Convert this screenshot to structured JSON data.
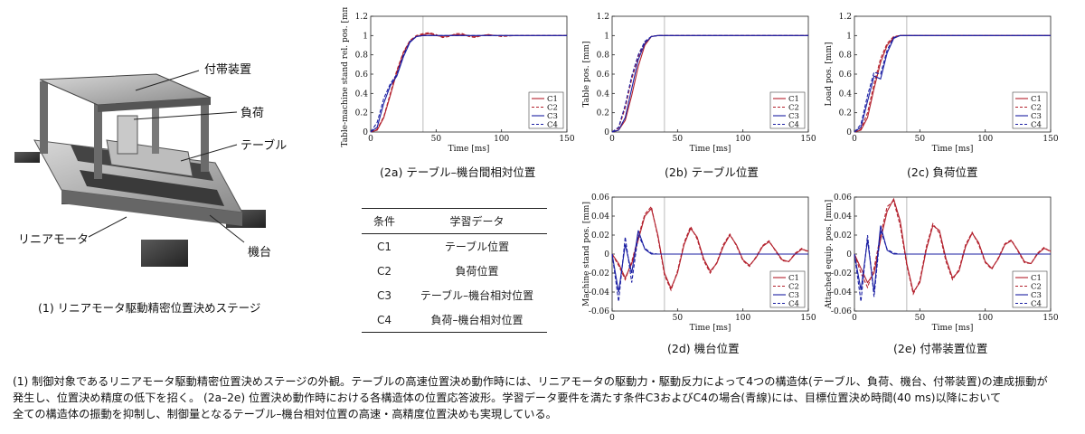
{
  "photo": {
    "labels": {
      "attached": "付帯装置",
      "load": "負荷",
      "table": "テーブル",
      "motor": "リニアモータ",
      "base": "機台"
    },
    "caption": "(1) リニアモータ駆動精密位置決めステージ"
  },
  "captions": {
    "a": "(2a) テーブル–機台間相対位置",
    "b": "(2b) テーブル位置",
    "c": "(2c) 負荷位置",
    "d": "(2d) 機台位置",
    "e": "(2e) 付帯装置位置"
  },
  "legend": [
    "C1",
    "C2",
    "C3",
    "C4"
  ],
  "colors": {
    "c1c2": "#b3202c",
    "c3c4": "#1b1fa3",
    "grid_marker": "#bbbbbb"
  },
  "table": {
    "headers": [
      "条件",
      "学習データ"
    ],
    "rows": [
      [
        "C1",
        "テーブル位置"
      ],
      [
        "C2",
        "負荷位置"
      ],
      [
        "C3",
        "テーブル–機台相対位置"
      ],
      [
        "C4",
        "負荷–機台相対位置"
      ]
    ]
  },
  "bottom_caption": {
    "line1": "(1) 制御対象であるリニアモータ駆動精密位置決めステージの外観。テーブルの高速位置決め動作時には、リニアモータの駆動力・駆動反力によって4つの構造体(テーブル、負荷、機台、付帯装置)の連成振動が",
    "line2": "発生し、位置決め精度の低下を招く。 (2a–2e) 位置決め動作時における各構造体の位置応答波形。学習データ要件を満たす条件C3およびC4の場合(青線)には、目標位置決め時間(40 ms)以降において",
    "line3": "全ての構造体の振動を抑制し、制御量となるテーブル–機台相対位置の高速・高精度位置決めも実現している。"
  },
  "chart_data": [
    {
      "type": "line",
      "id": "a",
      "xlabel": "Time [ms]",
      "ylabel": "Table-machine stand rel. pos. [mm]",
      "xlim": [
        0,
        150
      ],
      "ylim": [
        0,
        1.2
      ],
      "xticks": [
        0,
        50,
        100,
        150
      ],
      "yticks": [
        0,
        0.2,
        0.4,
        0.6,
        0.8,
        1,
        1.2
      ],
      "vline": 40,
      "x": [
        0,
        5,
        10,
        15,
        20,
        25,
        30,
        35,
        40,
        45,
        50,
        55,
        60,
        65,
        70,
        75,
        80,
        85,
        90,
        95,
        100,
        110,
        120,
        130,
        140,
        150
      ],
      "series": [
        {
          "name": "C1",
          "values": [
            0,
            0.02,
            0.15,
            0.38,
            0.62,
            0.82,
            0.94,
            0.99,
            1.01,
            1.02,
            1.0,
            0.99,
            1.0,
            1.01,
            1.01,
            1.0,
            0.99,
            1.0,
            1.01,
            1.0,
            1.0,
            1.0,
            1.0,
            1.0,
            1.0,
            1.0
          ]
        },
        {
          "name": "C2",
          "values": [
            0,
            0.03,
            0.16,
            0.4,
            0.64,
            0.83,
            0.95,
            1.0,
            1.02,
            1.03,
            1.01,
            0.98,
            0.99,
            1.02,
            1.02,
            0.99,
            0.98,
            1.0,
            1.01,
            1.0,
            0.99,
            1.0,
            1.0,
            1.0,
            1.0,
            1.0
          ]
        },
        {
          "name": "C3",
          "values": [
            0,
            0.05,
            0.3,
            0.48,
            0.58,
            0.78,
            0.93,
            0.99,
            1.0,
            1.0,
            1.0,
            1.0,
            1.0,
            1.0,
            1.0,
            1.0,
            1.0,
            1.0,
            1.0,
            1.0,
            1.0,
            1.0,
            1.0,
            1.0,
            1.0,
            1.0
          ]
        },
        {
          "name": "C4",
          "values": [
            0,
            0.1,
            0.35,
            0.5,
            0.6,
            0.8,
            0.94,
            0.99,
            1.0,
            1.0,
            1.0,
            1.0,
            1.0,
            1.0,
            1.0,
            1.0,
            1.0,
            1.0,
            1.0,
            1.0,
            1.0,
            1.0,
            1.0,
            1.0,
            1.0,
            1.0
          ]
        }
      ]
    },
    {
      "type": "line",
      "id": "b",
      "xlabel": "Time [ms]",
      "ylabel": "Table pos. [mm]",
      "xlim": [
        0,
        150
      ],
      "ylim": [
        0,
        1.2
      ],
      "xticks": [
        0,
        50,
        100,
        150
      ],
      "yticks": [
        0,
        0.2,
        0.4,
        0.6,
        0.8,
        1,
        1.2
      ],
      "vline": 40,
      "x": [
        0,
        5,
        10,
        15,
        20,
        25,
        30,
        35,
        40,
        50,
        60,
        80,
        100,
        120,
        150
      ],
      "series": [
        {
          "name": "C1",
          "values": [
            0,
            0.02,
            0.12,
            0.38,
            0.68,
            0.9,
            0.99,
            1.0,
            1.0,
            1.0,
            1.0,
            1.0,
            1.0,
            1.0,
            1.0
          ]
        },
        {
          "name": "C2",
          "values": [
            0,
            0.04,
            0.25,
            0.55,
            0.78,
            0.93,
            0.99,
            1.0,
            1.0,
            1.0,
            1.0,
            1.0,
            1.0,
            1.0,
            1.0
          ]
        },
        {
          "name": "C3",
          "values": [
            0,
            0.02,
            0.15,
            0.45,
            0.75,
            0.92,
            0.99,
            1.0,
            1.0,
            1.0,
            1.0,
            1.0,
            1.0,
            1.0,
            1.0
          ]
        },
        {
          "name": "C4",
          "values": [
            0,
            0.05,
            0.28,
            0.58,
            0.8,
            0.94,
            0.99,
            1.0,
            1.0,
            1.0,
            1.0,
            1.0,
            1.0,
            1.0,
            1.0
          ]
        }
      ]
    },
    {
      "type": "line",
      "id": "c",
      "xlabel": "Time [ms]",
      "ylabel": "Load pos. [mm]",
      "xlim": [
        0,
        150
      ],
      "ylim": [
        0,
        1.2
      ],
      "xticks": [
        0,
        50,
        100,
        150
      ],
      "yticks": [
        0,
        0.2,
        0.4,
        0.6,
        0.8,
        1,
        1.2
      ],
      "vline": 40,
      "x": [
        0,
        5,
        10,
        15,
        20,
        25,
        30,
        35,
        40,
        50,
        60,
        80,
        100,
        120,
        150
      ],
      "series": [
        {
          "name": "C1",
          "values": [
            0,
            0.02,
            0.15,
            0.45,
            0.72,
            0.9,
            0.98,
            1.0,
            1.0,
            1.0,
            1.0,
            1.0,
            1.0,
            1.0,
            1.0
          ]
        },
        {
          "name": "C2",
          "values": [
            0,
            0.03,
            0.2,
            0.5,
            0.76,
            0.92,
            0.99,
            1.0,
            1.0,
            1.0,
            1.0,
            1.0,
            1.0,
            1.0,
            1.0
          ]
        },
        {
          "name": "C3",
          "values": [
            0,
            0.05,
            0.32,
            0.58,
            0.55,
            0.82,
            0.97,
            1.0,
            1.0,
            1.0,
            1.0,
            1.0,
            1.0,
            1.0,
            1.0
          ]
        },
        {
          "name": "C4",
          "values": [
            0,
            0.08,
            0.38,
            0.62,
            0.6,
            0.85,
            0.98,
            1.0,
            1.0,
            1.0,
            1.0,
            1.0,
            1.0,
            1.0,
            1.0
          ]
        }
      ]
    },
    {
      "type": "line",
      "id": "d",
      "xlabel": "Time [ms]",
      "ylabel": "Machine stand pos. [mm]",
      "xlim": [
        0,
        150
      ],
      "ylim": [
        -0.06,
        0.06
      ],
      "xticks": [
        0,
        50,
        100,
        150
      ],
      "yticks": [
        -0.06,
        -0.04,
        -0.02,
        0,
        0.02,
        0.04,
        0.06
      ],
      "vline": 40,
      "x": [
        0,
        5,
        10,
        15,
        20,
        25,
        30,
        35,
        40,
        45,
        50,
        55,
        60,
        65,
        70,
        75,
        80,
        85,
        90,
        95,
        100,
        105,
        110,
        115,
        120,
        125,
        130,
        135,
        140,
        145,
        150
      ],
      "series": [
        {
          "name": "C1",
          "values": [
            0,
            -0.01,
            -0.025,
            -0.01,
            0.015,
            0.04,
            0.048,
            0.02,
            -0.02,
            -0.036,
            -0.02,
            0.01,
            0.027,
            0.018,
            -0.005,
            -0.018,
            -0.01,
            0.008,
            0.02,
            0.01,
            -0.006,
            -0.012,
            -0.004,
            0.008,
            0.013,
            0.004,
            -0.006,
            -0.008,
            0.0,
            0.005,
            0.003
          ]
        },
        {
          "name": "C2",
          "values": [
            0,
            -0.012,
            -0.027,
            -0.008,
            0.018,
            0.042,
            0.05,
            0.018,
            -0.022,
            -0.038,
            -0.018,
            0.012,
            0.029,
            0.016,
            -0.007,
            -0.02,
            -0.009,
            0.01,
            0.021,
            0.009,
            -0.007,
            -0.013,
            -0.003,
            0.009,
            0.014,
            0.003,
            -0.007,
            -0.008,
            0.001,
            0.006,
            0.002
          ]
        },
        {
          "name": "C3",
          "values": [
            0,
            -0.04,
            0.01,
            -0.02,
            0.025,
            0.005,
            0.0,
            0.0,
            0.0,
            0.0,
            0.0,
            0.0,
            0.0,
            0.0,
            0.0,
            0.0,
            0.0,
            0.0,
            0.0,
            0.0,
            0.0,
            0.0,
            0.0,
            0.0,
            0.0,
            0.0,
            0.0,
            0.0,
            0.0,
            0.0,
            0.0
          ]
        },
        {
          "name": "C4",
          "values": [
            0,
            -0.05,
            0.018,
            -0.03,
            0.02,
            0.006,
            0.001,
            0.0,
            0.0,
            0.0,
            0.0,
            0.0,
            0.0,
            0.0,
            0.0,
            0.0,
            0.0,
            0.0,
            0.0,
            0.0,
            0.0,
            0.0,
            0.0,
            0.0,
            0.0,
            0.0,
            0.0,
            0.0,
            0.0,
            0.0,
            0.0
          ]
        }
      ]
    },
    {
      "type": "line",
      "id": "e",
      "xlabel": "Time [ms]",
      "ylabel": "Attached equip. pos. [mm]",
      "xlim": [
        0,
        150
      ],
      "ylim": [
        -0.06,
        0.06
      ],
      "xticks": [
        0,
        50,
        100,
        150
      ],
      "yticks": [
        -0.06,
        -0.04,
        -0.02,
        0,
        0.02,
        0.04,
        0.06
      ],
      "vline": 40,
      "x": [
        0,
        5,
        10,
        15,
        20,
        25,
        30,
        35,
        40,
        45,
        50,
        55,
        60,
        65,
        70,
        75,
        80,
        85,
        90,
        95,
        100,
        105,
        110,
        115,
        120,
        125,
        130,
        135,
        140,
        145,
        150
      ],
      "series": [
        {
          "name": "C1",
          "values": [
            0,
            -0.015,
            -0.03,
            -0.02,
            0.015,
            0.045,
            0.058,
            0.035,
            -0.01,
            -0.04,
            -0.03,
            0.005,
            0.03,
            0.025,
            -0.005,
            -0.025,
            -0.018,
            0.008,
            0.022,
            0.012,
            -0.008,
            -0.015,
            -0.005,
            0.01,
            0.014,
            0.004,
            -0.008,
            -0.01,
            0.0,
            0.006,
            0.003
          ]
        },
        {
          "name": "C2",
          "values": [
            0,
            -0.02,
            -0.035,
            -0.015,
            0.02,
            0.05,
            0.056,
            0.03,
            -0.012,
            -0.042,
            -0.028,
            0.008,
            0.032,
            0.022,
            -0.008,
            -0.027,
            -0.016,
            0.01,
            0.023,
            0.01,
            -0.009,
            -0.016,
            -0.004,
            0.011,
            0.015,
            0.003,
            -0.009,
            -0.01,
            0.001,
            0.007,
            0.002
          ]
        },
        {
          "name": "C3",
          "values": [
            0,
            -0.038,
            0.015,
            -0.04,
            0.03,
            0.004,
            0.0,
            0.0,
            0.0,
            0.0,
            0.0,
            0.0,
            0.0,
            0.0,
            0.0,
            0.0,
            0.0,
            0.0,
            0.0,
            0.0,
            0.0,
            0.0,
            0.0,
            0.0,
            0.0,
            0.0,
            0.0,
            0.0,
            0.0,
            0.0,
            0.0
          ]
        },
        {
          "name": "C4",
          "values": [
            0,
            -0.05,
            0.02,
            -0.045,
            0.025,
            0.005,
            0.001,
            0.0,
            0.0,
            0.0,
            0.0,
            0.0,
            0.0,
            0.0,
            0.0,
            0.0,
            0.0,
            0.0,
            0.0,
            0.0,
            0.0,
            0.0,
            0.0,
            0.0,
            0.0,
            0.0,
            0.0,
            0.0,
            0.0,
            0.0,
            0.0
          ]
        }
      ]
    }
  ]
}
